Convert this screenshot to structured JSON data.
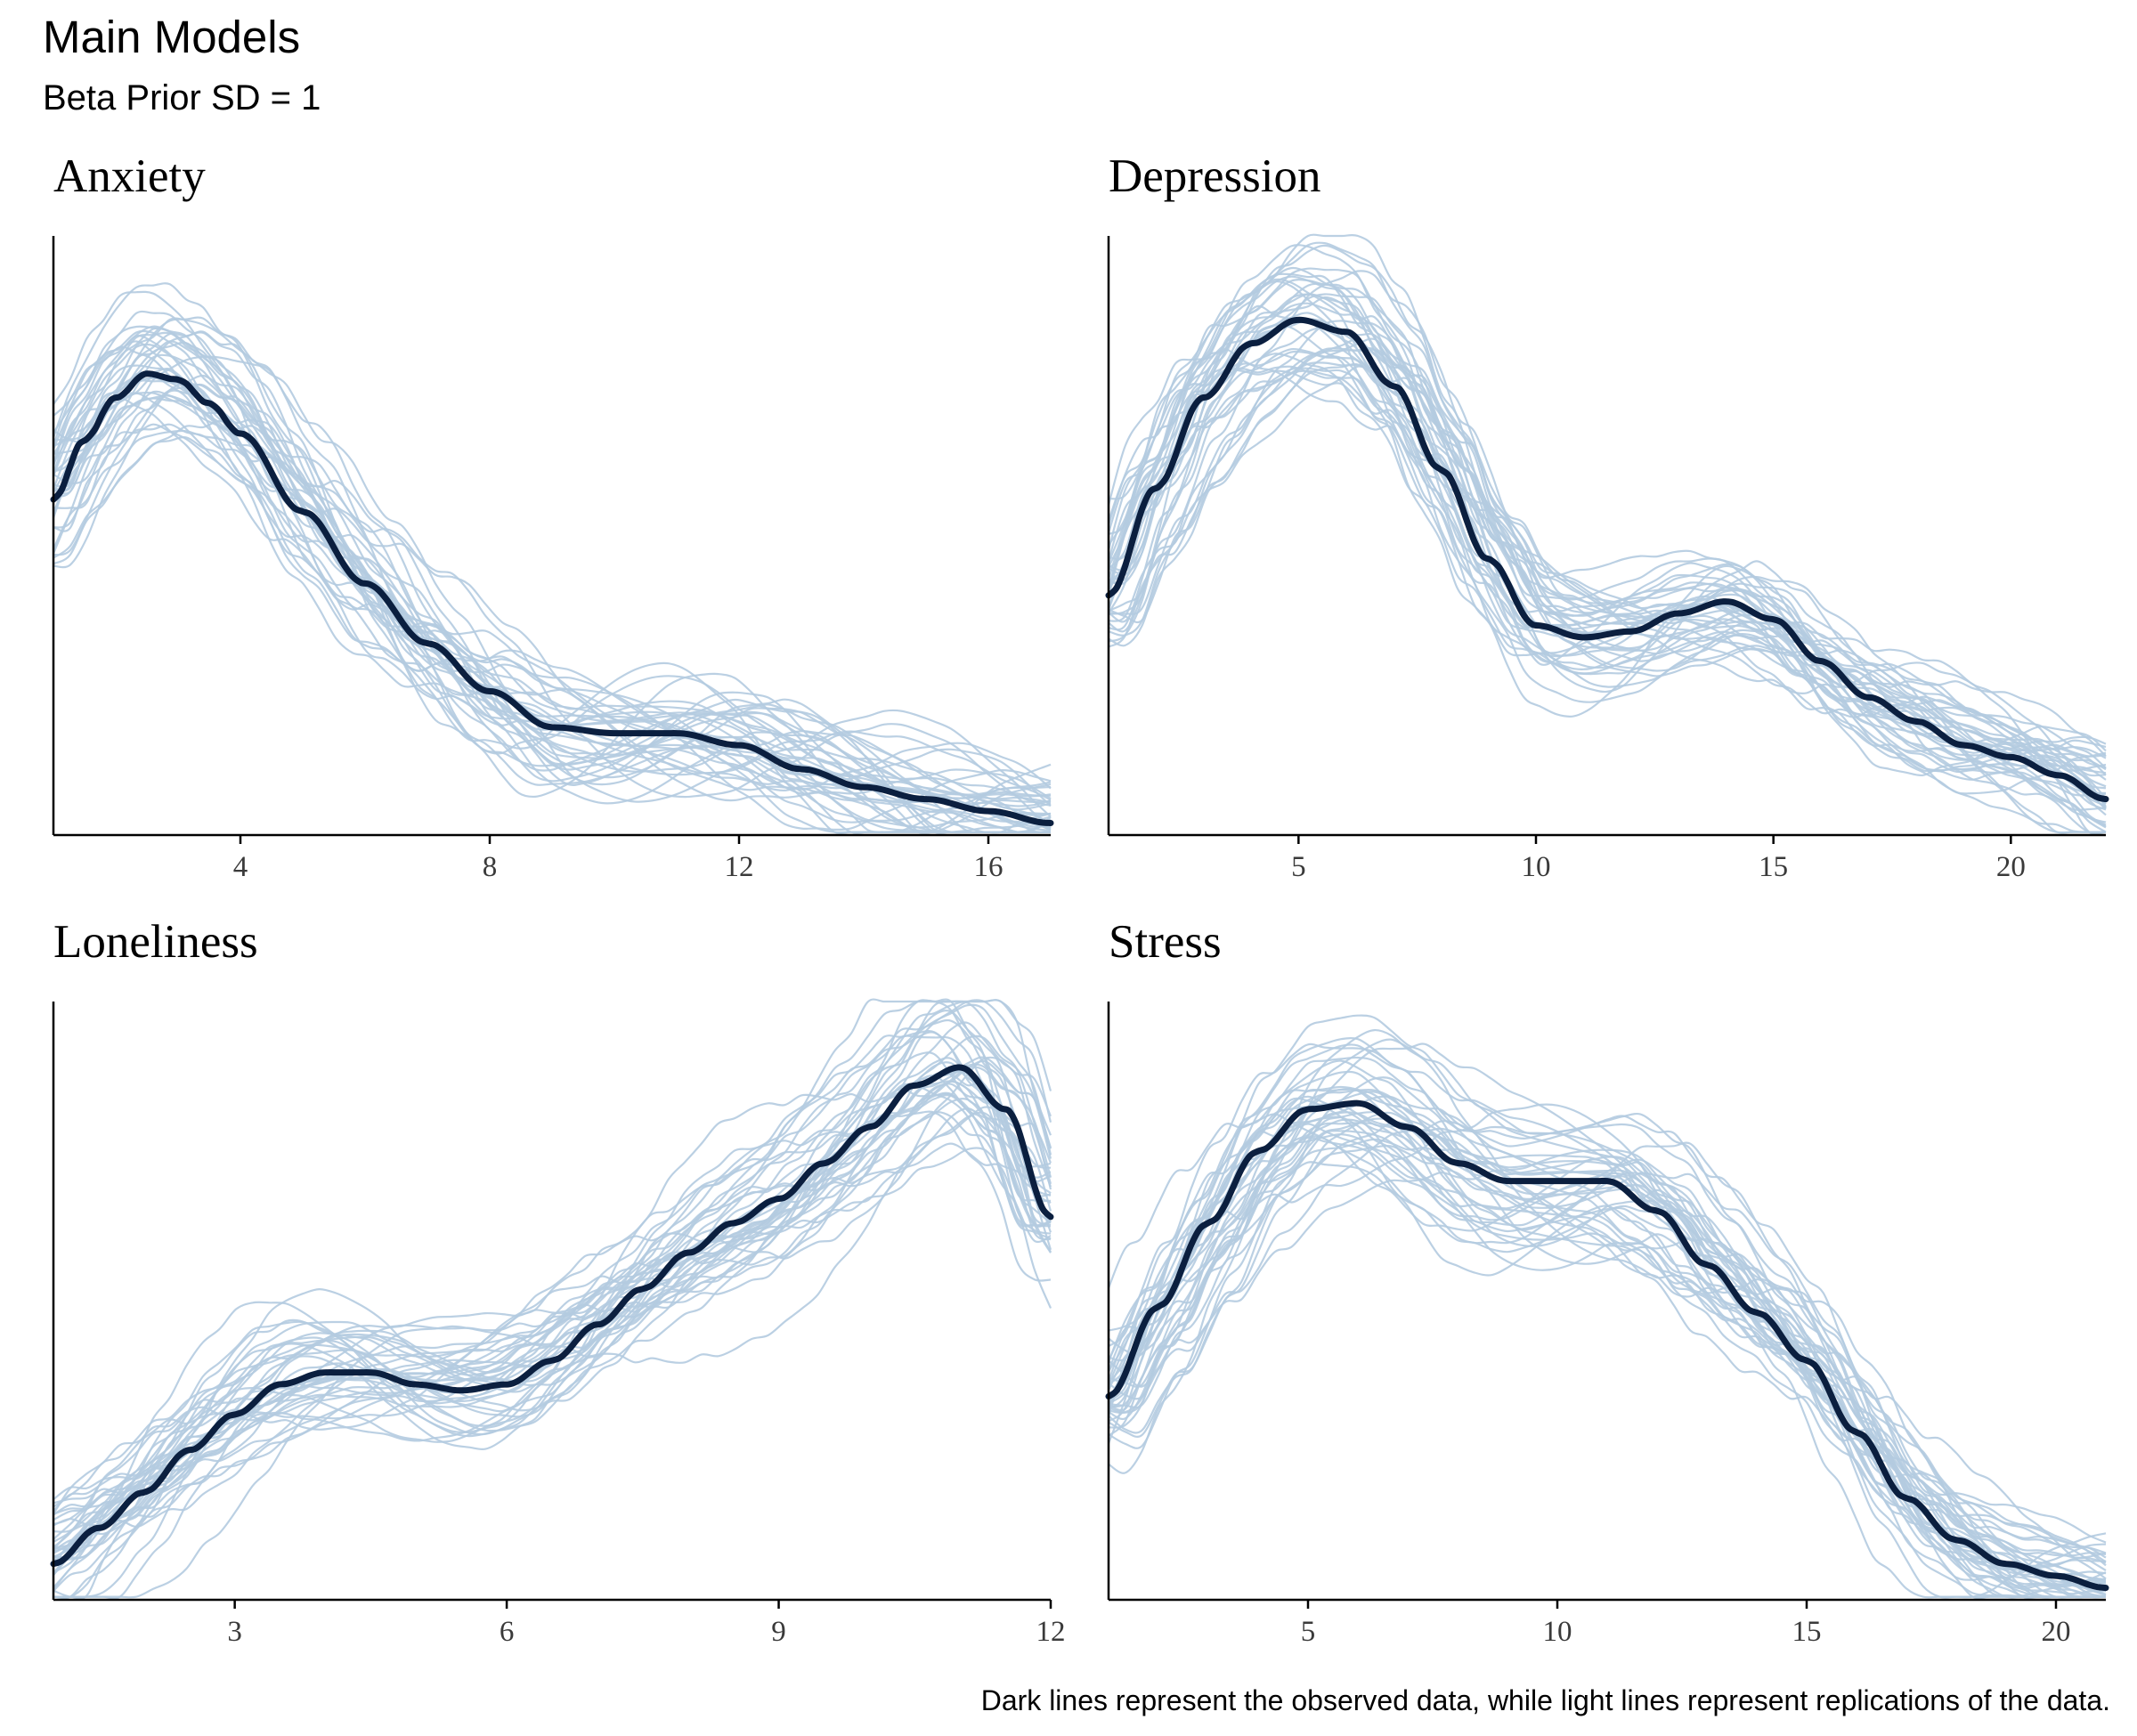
{
  "title": "Main Models",
  "subtitle": "Beta Prior SD = 1",
  "caption": "Dark lines represent the observed data, while light lines represent replications of the data.",
  "colors": {
    "observed": "#0b1f3f",
    "replications": "#b4cbe0",
    "axis": "#000000",
    "tick_label": "#3a3a3a"
  },
  "chart_data": [
    {
      "type": "line",
      "title": "Anxiety",
      "xlabel": "",
      "ylabel": "",
      "xlim": [
        1,
        17
      ],
      "ylim": [
        0,
        1
      ],
      "xticks": [
        4,
        8,
        12,
        16
      ],
      "y_axis_labels": false,
      "grid": false,
      "replications": 40,
      "observed": {
        "x": [
          1,
          1.5,
          2,
          2.5,
          3,
          3.5,
          4,
          5,
          6,
          7,
          8,
          9,
          10,
          11,
          12,
          13,
          14,
          15,
          16,
          17
        ],
        "y": [
          0.56,
          0.66,
          0.73,
          0.77,
          0.76,
          0.72,
          0.67,
          0.54,
          0.42,
          0.32,
          0.24,
          0.18,
          0.17,
          0.17,
          0.15,
          0.11,
          0.08,
          0.06,
          0.04,
          0.02
        ]
      }
    },
    {
      "type": "line",
      "title": "Depression",
      "xlabel": "",
      "ylabel": "",
      "xlim": [
        1,
        22
      ],
      "ylim": [
        0,
        1
      ],
      "xticks": [
        5,
        10,
        15,
        20
      ],
      "y_axis_labels": false,
      "grid": false,
      "replications": 40,
      "observed": {
        "x": [
          1,
          2,
          3,
          4,
          5,
          6,
          7,
          8,
          9,
          10,
          11,
          12,
          13,
          14,
          15,
          16,
          17,
          18,
          19,
          20,
          21,
          22
        ],
        "y": [
          0.4,
          0.58,
          0.73,
          0.82,
          0.86,
          0.84,
          0.75,
          0.61,
          0.46,
          0.35,
          0.33,
          0.34,
          0.37,
          0.39,
          0.36,
          0.29,
          0.23,
          0.19,
          0.15,
          0.13,
          0.1,
          0.06
        ]
      }
    },
    {
      "type": "line",
      "title": "Loneliness",
      "xlabel": "",
      "ylabel": "",
      "xlim": [
        1,
        12
      ],
      "ylim": [
        0,
        1
      ],
      "xticks": [
        3,
        6,
        9,
        12
      ],
      "y_axis_labels": false,
      "grid": false,
      "replications": 40,
      "observed": {
        "x": [
          1,
          1.5,
          2,
          2.5,
          3,
          3.5,
          4,
          4.5,
          5,
          5.5,
          6,
          6.5,
          7,
          7.5,
          8,
          8.5,
          9,
          9.5,
          10,
          10.5,
          11,
          11.5,
          12
        ],
        "y": [
          0.06,
          0.12,
          0.18,
          0.25,
          0.31,
          0.36,
          0.38,
          0.38,
          0.36,
          0.35,
          0.36,
          0.4,
          0.46,
          0.52,
          0.58,
          0.63,
          0.67,
          0.73,
          0.79,
          0.86,
          0.89,
          0.82,
          0.64
        ]
      }
    },
    {
      "type": "line",
      "title": "Stress",
      "xlabel": "",
      "ylabel": "",
      "xlim": [
        1,
        21
      ],
      "ylim": [
        0,
        1
      ],
      "xticks": [
        5,
        10,
        15,
        20
      ],
      "y_axis_labels": false,
      "grid": false,
      "replications": 40,
      "observed": {
        "x": [
          1,
          2,
          3,
          4,
          5,
          6,
          7,
          8,
          9,
          10,
          11,
          12,
          13,
          14,
          15,
          16,
          17,
          18,
          19,
          20,
          21
        ],
        "y": [
          0.34,
          0.49,
          0.63,
          0.75,
          0.82,
          0.83,
          0.79,
          0.73,
          0.7,
          0.7,
          0.7,
          0.65,
          0.56,
          0.48,
          0.4,
          0.28,
          0.17,
          0.1,
          0.06,
          0.04,
          0.02
        ]
      }
    }
  ]
}
